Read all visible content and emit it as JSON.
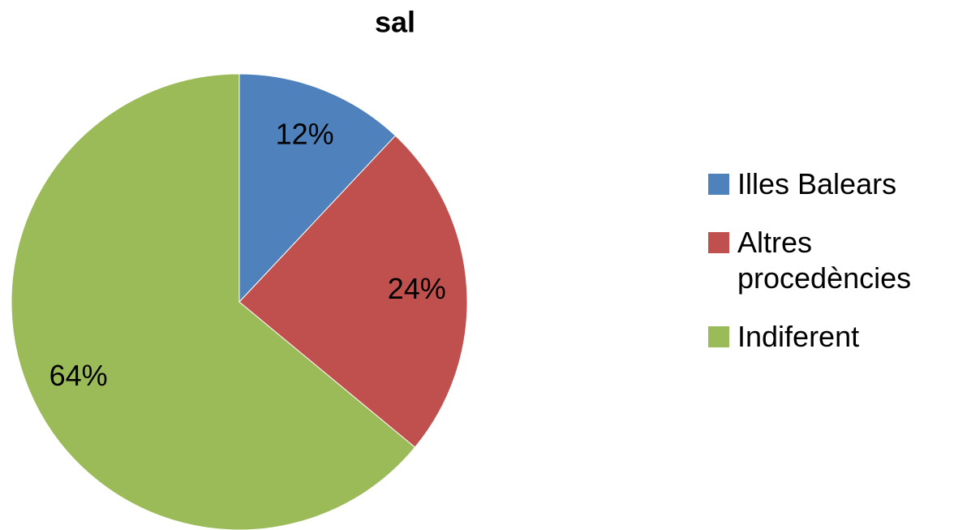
{
  "chart_data": {
    "type": "pie",
    "title": "sal",
    "categories": [
      "Illes Balears",
      "Altres procedències",
      "Indiferent"
    ],
    "values": [
      12,
      24,
      64
    ],
    "value_labels": [
      "12%",
      "24%",
      "64%"
    ],
    "colors": [
      "#4f81bd",
      "#c0504d",
      "#9bbb59"
    ],
    "legend": "right"
  }
}
